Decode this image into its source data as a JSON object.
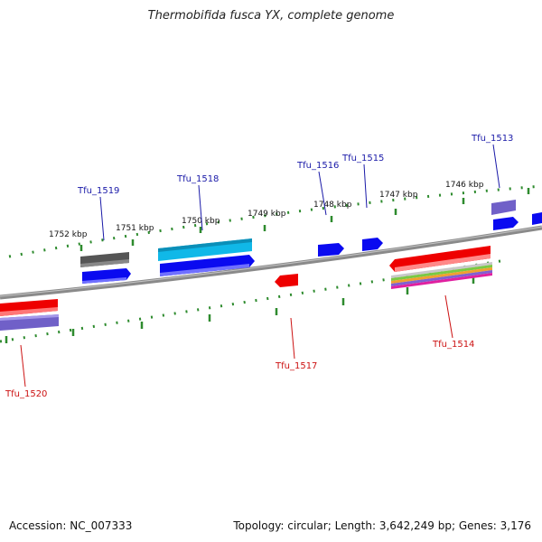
{
  "title": "Thermobifida fusca YX, complete genome",
  "footer": {
    "accession_label": "Accession:",
    "accession": "NC_007333",
    "topology_label": "Topology:",
    "topology": "circular",
    "length_label": "Length:",
    "length": "3,642,249 bp",
    "genes_label": "Genes:",
    "genes": "3,176"
  },
  "colors": {
    "backbone": "#8a8a8a",
    "tick": "#2e8b2e",
    "forward_label": "#1a1aa8",
    "reverse_label": "#cc1111",
    "blue": "#0a0af0",
    "red": "#ee0000",
    "gray": "#555555",
    "cyan": "#10b8e8",
    "purple": "#7060c8"
  },
  "scale_labels": [
    "1752 kbp",
    "1751 kbp",
    "1750 kbp",
    "1749 kbp",
    "1748 kbp",
    "1747 kbp",
    "1746 kbp"
  ],
  "genes": [
    {
      "name": "Tfu_1520",
      "strand": "reverse",
      "icon": "gene-arrow-icon"
    },
    {
      "name": "Tfu_1519",
      "strand": "forward",
      "icon": "gene-arrow-icon"
    },
    {
      "name": "Tfu_1518",
      "strand": "forward",
      "icon": "gene-arrow-icon"
    },
    {
      "name": "Tfu_1517",
      "strand": "reverse",
      "icon": "gene-arrow-icon"
    },
    {
      "name": "Tfu_1516",
      "strand": "forward",
      "icon": "gene-arrow-icon"
    },
    {
      "name": "Tfu_1515",
      "strand": "forward",
      "icon": "gene-arrow-icon"
    },
    {
      "name": "Tfu_1514",
      "strand": "reverse",
      "icon": "gene-arrow-icon"
    },
    {
      "name": "Tfu_1513",
      "strand": "forward",
      "icon": "gene-arrow-icon"
    }
  ]
}
